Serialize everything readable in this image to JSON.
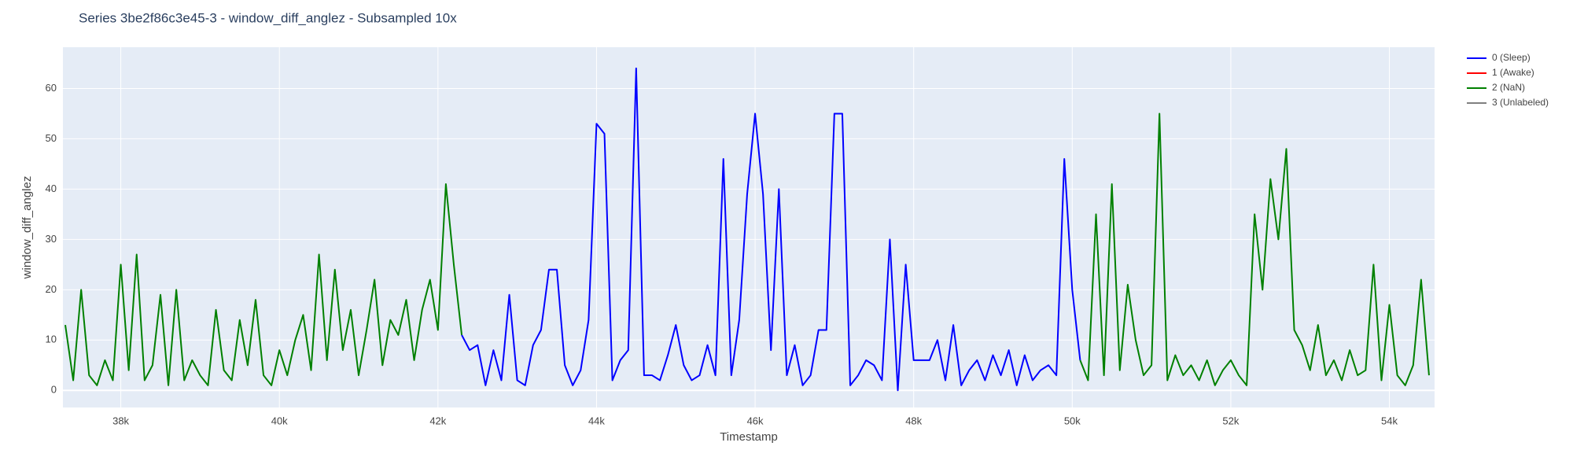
{
  "chart_data": {
    "type": "line",
    "title": "Series 3be2f86c3e45-3 - window_diff_anglez - Subsampled 10x",
    "x_label": "Timestamp",
    "y_label": "window_diff_anglez",
    "grid": true,
    "legend": "right",
    "xlim": [
      37270,
      54570
    ],
    "ylim": [
      -3.4,
      68.2
    ],
    "xticks": [
      {
        "value": 38000,
        "label": "38k"
      },
      {
        "value": 40000,
        "label": "40k"
      },
      {
        "value": 42000,
        "label": "42k"
      },
      {
        "value": 44000,
        "label": "44k"
      },
      {
        "value": 46000,
        "label": "46k"
      },
      {
        "value": 48000,
        "label": "48k"
      },
      {
        "value": 50000,
        "label": "50k"
      },
      {
        "value": 52000,
        "label": "52k"
      },
      {
        "value": 54000,
        "label": "54k"
      }
    ],
    "yticks": [
      0,
      10,
      20,
      30,
      40,
      50,
      60
    ],
    "x": [
      37300,
      37400,
      37500,
      37600,
      37700,
      37800,
      37900,
      38000,
      38100,
      38200,
      38300,
      38400,
      38500,
      38600,
      38700,
      38800,
      38900,
      39000,
      39100,
      39200,
      39300,
      39400,
      39500,
      39600,
      39700,
      39800,
      39900,
      40000,
      40100,
      40200,
      40300,
      40400,
      40500,
      40600,
      40700,
      40800,
      40900,
      41000,
      41100,
      41200,
      41300,
      41400,
      41500,
      41600,
      41700,
      41800,
      41900,
      42000,
      42100,
      42200,
      42300,
      42400,
      42500,
      42600,
      42700,
      42800,
      42900,
      43000,
      43100,
      43200,
      43300,
      43400,
      43500,
      43600,
      43700,
      43800,
      43900,
      44000,
      44100,
      44200,
      44300,
      44400,
      44500,
      44600,
      44700,
      44800,
      44900,
      45000,
      45100,
      45200,
      45300,
      45400,
      45500,
      45600,
      45700,
      45800,
      45900,
      46000,
      46100,
      46200,
      46300,
      46400,
      46500,
      46600,
      46700,
      46800,
      46900,
      47000,
      47100,
      47200,
      47300,
      47400,
      47500,
      47600,
      47700,
      47800,
      47900,
      48000,
      48100,
      48200,
      48300,
      48400,
      48500,
      48600,
      48700,
      48800,
      48900,
      49000,
      49100,
      49200,
      49300,
      49400,
      49500,
      49600,
      49700,
      49800,
      49900,
      50000,
      50100,
      50200,
      50300,
      50400,
      50500,
      50600,
      50700,
      50800,
      50900,
      51000,
      51100,
      51200,
      51300,
      51400,
      51500,
      51600,
      51700,
      51800,
      51900,
      52000,
      52100,
      52200,
      52300,
      52400,
      52500,
      52600,
      52700,
      52800,
      52900,
      53000,
      53100,
      53200,
      53300,
      53400,
      53500,
      53600,
      53700,
      53800,
      53900,
      54000,
      54100,
      54200,
      54300,
      54400,
      54500
    ],
    "series": [
      {
        "name": "0 (Sleep)",
        "color": "#0000ff",
        "values": [
          null,
          null,
          null,
          null,
          null,
          null,
          null,
          null,
          null,
          null,
          null,
          null,
          null,
          null,
          null,
          null,
          null,
          null,
          null,
          null,
          null,
          null,
          null,
          null,
          null,
          null,
          null,
          null,
          null,
          null,
          null,
          null,
          null,
          null,
          null,
          null,
          null,
          null,
          null,
          null,
          null,
          null,
          null,
          null,
          null,
          null,
          null,
          null,
          null,
          null,
          11,
          8,
          9,
          1,
          8,
          2,
          19,
          2,
          1,
          9,
          12,
          24,
          24,
          5,
          1,
          4,
          14,
          53,
          51,
          2,
          6,
          8,
          64,
          3,
          3,
          2,
          7,
          13,
          5,
          2,
          3,
          9,
          3,
          46,
          3,
          14,
          39,
          55,
          39,
          8,
          40,
          3,
          9,
          1,
          3,
          12,
          12,
          55,
          55,
          1,
          3,
          6,
          5,
          2,
          30,
          0,
          25,
          6,
          6,
          6,
          10,
          2,
          13,
          1,
          4,
          6,
          2,
          7,
          3,
          8,
          1,
          7,
          2,
          4,
          5,
          3,
          46,
          20,
          6,
          null,
          null,
          null,
          null,
          null,
          null,
          null,
          null,
          null,
          null,
          null,
          null,
          null,
          null,
          null,
          null,
          null,
          null,
          null,
          null,
          null,
          null,
          null,
          null,
          null,
          null,
          null,
          null,
          null,
          null,
          null,
          null,
          null,
          null,
          null,
          null,
          null,
          null,
          null,
          null,
          null,
          null,
          null,
          null
        ]
      },
      {
        "name": "1 (Awake)",
        "color": "#ff0000",
        "values": [
          null,
          null,
          null,
          null,
          null,
          null,
          null,
          null,
          null,
          null,
          null,
          null,
          null,
          null,
          null,
          null,
          null,
          null,
          null,
          null,
          null,
          null,
          null,
          null,
          null,
          null,
          null,
          null,
          null,
          null,
          null,
          null,
          null,
          null,
          null,
          null,
          null,
          null,
          null,
          null,
          null,
          null,
          null,
          null,
          null,
          null,
          null,
          null,
          null,
          null,
          null,
          null,
          null,
          null,
          null,
          null,
          null,
          null,
          null,
          null,
          null,
          null,
          null,
          null,
          null,
          null,
          null,
          null,
          null,
          null,
          null,
          null,
          null,
          null,
          null,
          null,
          null,
          null,
          null,
          null,
          null,
          null,
          null,
          null,
          null,
          null,
          null,
          null,
          null,
          null,
          null,
          null,
          null,
          null,
          null,
          null,
          null,
          null,
          null,
          null,
          null,
          null,
          null,
          null,
          null,
          null,
          null,
          null,
          null,
          null,
          null,
          null,
          null,
          null,
          null,
          null,
          null,
          null,
          null,
          null,
          null,
          null,
          null,
          null,
          null,
          null,
          null,
          null,
          null,
          null,
          null,
          null,
          null,
          null,
          null,
          null,
          null,
          null,
          null,
          null,
          null,
          null,
          null,
          null,
          null,
          null,
          null,
          null,
          null,
          null,
          null,
          null,
          null,
          null,
          null,
          null,
          null,
          null,
          null,
          null,
          null,
          null,
          null,
          null,
          null,
          null,
          null,
          null,
          null,
          null,
          null,
          null,
          null
        ]
      },
      {
        "name": "2 (NaN)",
        "color": "#008000",
        "values": [
          13,
          2,
          20,
          3,
          1,
          6,
          2,
          25,
          4,
          27,
          2,
          5,
          19,
          1,
          20,
          2,
          6,
          3,
          1,
          16,
          4,
          2,
          14,
          5,
          18,
          3,
          1,
          8,
          3,
          10,
          15,
          4,
          27,
          6,
          24,
          8,
          16,
          3,
          12,
          22,
          5,
          14,
          11,
          18,
          6,
          16,
          22,
          12,
          41,
          25,
          11,
          null,
          null,
          null,
          null,
          null,
          null,
          null,
          null,
          null,
          null,
          null,
          null,
          null,
          null,
          null,
          null,
          null,
          null,
          null,
          null,
          null,
          null,
          null,
          null,
          null,
          null,
          null,
          null,
          null,
          null,
          null,
          null,
          null,
          null,
          null,
          null,
          null,
          null,
          null,
          null,
          null,
          null,
          null,
          null,
          null,
          null,
          null,
          null,
          null,
          null,
          null,
          null,
          null,
          null,
          null,
          null,
          null,
          null,
          null,
          null,
          null,
          null,
          null,
          null,
          null,
          null,
          null,
          null,
          null,
          null,
          null,
          null,
          null,
          null,
          null,
          null,
          null,
          6,
          2,
          35,
          3,
          41,
          4,
          21,
          10,
          3,
          5,
          55,
          2,
          7,
          3,
          5,
          2,
          6,
          1,
          4,
          6,
          3,
          1,
          35,
          20,
          42,
          30,
          48,
          12,
          9,
          4,
          13,
          3,
          6,
          2,
          8,
          3,
          4,
          25,
          2,
          17,
          3,
          1,
          5,
          22,
          3
        ]
      },
      {
        "name": "3 (Unlabeled)",
        "color": "#808080",
        "values": [
          null,
          null,
          null,
          null,
          null,
          null,
          null,
          null,
          null,
          null,
          null,
          null,
          null,
          null,
          null,
          null,
          null,
          null,
          null,
          null,
          null,
          null,
          null,
          null,
          null,
          null,
          null,
          null,
          null,
          null,
          null,
          null,
          null,
          null,
          null,
          null,
          null,
          null,
          null,
          null,
          null,
          null,
          null,
          null,
          null,
          null,
          null,
          null,
          null,
          null,
          null,
          null,
          null,
          null,
          null,
          null,
          null,
          null,
          null,
          null,
          null,
          null,
          null,
          null,
          null,
          null,
          null,
          null,
          null,
          null,
          null,
          null,
          null,
          null,
          null,
          null,
          null,
          null,
          null,
          null,
          null,
          null,
          null,
          null,
          null,
          null,
          null,
          null,
          null,
          null,
          null,
          null,
          null,
          null,
          null,
          null,
          null,
          null,
          null,
          null,
          null,
          null,
          null,
          null,
          null,
          null,
          null,
          null,
          null,
          null,
          null,
          null,
          null,
          null,
          null,
          null,
          null,
          null,
          null,
          null,
          null,
          null,
          null,
          null,
          null,
          null,
          null,
          null,
          null,
          null,
          null,
          null,
          null,
          null,
          null,
          null,
          null,
          null,
          null,
          null,
          null,
          null,
          null,
          null,
          null,
          null,
          null,
          null,
          null,
          null,
          null,
          null,
          null,
          null,
          null,
          null,
          null,
          null,
          null,
          null,
          null,
          null,
          null,
          null,
          null,
          null,
          null,
          null,
          null,
          null,
          null,
          null,
          null
        ]
      }
    ]
  }
}
